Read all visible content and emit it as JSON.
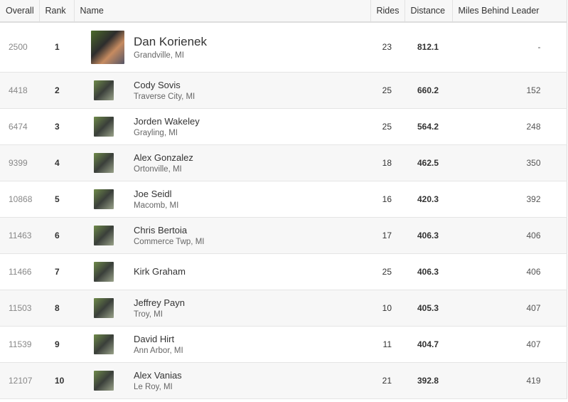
{
  "columns": {
    "overall": "Overall",
    "rank": "Rank",
    "name": "Name",
    "rides": "Rides",
    "distance": "Distance",
    "behind": "Miles Behind Leader"
  },
  "rows": [
    {
      "overall": "2500",
      "rank": "1",
      "name": "Dan Korienek",
      "location": "Grandville, MI",
      "rides": "23",
      "distance": "812.1",
      "behind": "-"
    },
    {
      "overall": "4418",
      "rank": "2",
      "name": "Cody Sovis",
      "location": "Traverse City, MI",
      "rides": "25",
      "distance": "660.2",
      "behind": "152"
    },
    {
      "overall": "6474",
      "rank": "3",
      "name": "Jorden Wakeley",
      "location": "Grayling, MI",
      "rides": "25",
      "distance": "564.2",
      "behind": "248"
    },
    {
      "overall": "9399",
      "rank": "4",
      "name": "Alex Gonzalez",
      "location": "Ortonville, MI",
      "rides": "18",
      "distance": "462.5",
      "behind": "350"
    },
    {
      "overall": "10868",
      "rank": "5",
      "name": "Joe Seidl",
      "location": "Macomb, MI",
      "rides": "16",
      "distance": "420.3",
      "behind": "392"
    },
    {
      "overall": "11463",
      "rank": "6",
      "name": "Chris Bertoia",
      "location": "Commerce Twp, MI",
      "rides": "17",
      "distance": "406.3",
      "behind": "406"
    },
    {
      "overall": "11466",
      "rank": "7",
      "name": "Kirk Graham",
      "location": "",
      "rides": "25",
      "distance": "406.3",
      "behind": "406"
    },
    {
      "overall": "11503",
      "rank": "8",
      "name": "Jeffrey Payn",
      "location": "Troy, MI",
      "rides": "10",
      "distance": "405.3",
      "behind": "407"
    },
    {
      "overall": "11539",
      "rank": "9",
      "name": "David Hirt",
      "location": "Ann Arbor, MI",
      "rides": "11",
      "distance": "404.7",
      "behind": "407"
    },
    {
      "overall": "12107",
      "rank": "10",
      "name": "Alex Vanias",
      "location": "Le Roy, MI",
      "rides": "21",
      "distance": "392.8",
      "behind": "419"
    }
  ]
}
